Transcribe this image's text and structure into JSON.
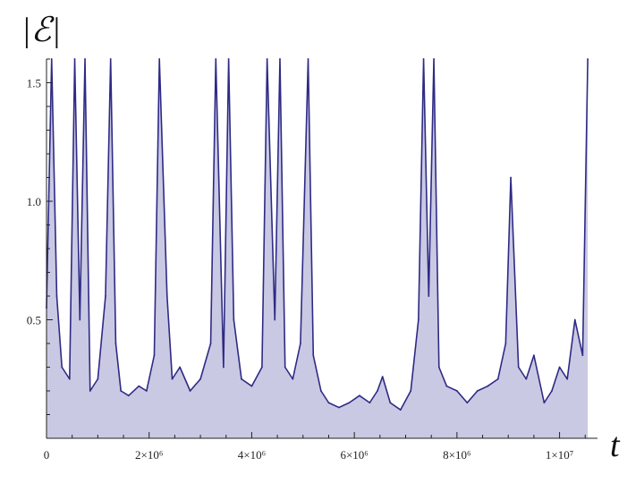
{
  "chart_data": {
    "type": "area",
    "ylabel": "|ℰ|",
    "xlabel": "t",
    "xlim": [
      0,
      10600000
    ],
    "ylim": [
      0,
      1.6
    ],
    "x_ticks": [
      {
        "value": 0,
        "label": "0"
      },
      {
        "value": 2000000,
        "label": "2×10⁶"
      },
      {
        "value": 4000000,
        "label": "4×10⁶"
      },
      {
        "value": 6000000,
        "label": "6×10⁶"
      },
      {
        "value": 8000000,
        "label": "8×10⁶"
      },
      {
        "value": 10000000,
        "label": "1×10⁷"
      }
    ],
    "y_ticks": [
      {
        "value": 0.5,
        "label": "0.5"
      },
      {
        "value": 1.0,
        "label": "1.0"
      },
      {
        "value": 1.5,
        "label": "1.5"
      }
    ],
    "grid": false,
    "colors": {
      "line": "#2e2a85",
      "fill": "#c9c9e3"
    },
    "series": [
      {
        "x": [
          0,
          100000,
          200000,
          300000,
          450000,
          550000,
          650000,
          750000,
          850000,
          1000000,
          1150000,
          1250000,
          1350000,
          1450000,
          1600000,
          1800000,
          1950000,
          2100000,
          2200000,
          2350000,
          2450000,
          2600000,
          2800000,
          3000000,
          3200000,
          3300000,
          3450000,
          3550000,
          3650000,
          3800000,
          4000000,
          4200000,
          4300000,
          4450000,
          4550000,
          4650000,
          4800000,
          4950000,
          5100000,
          5200000,
          5350000,
          5500000,
          5700000,
          5900000,
          6100000,
          6300000,
          6450000,
          6550000,
          6700000,
          6900000,
          7100000,
          7250000,
          7350000,
          7450000,
          7550000,
          7650000,
          7800000,
          8000000,
          8200000,
          8400000,
          8600000,
          8800000,
          8950000,
          9050000,
          9200000,
          9350000,
          9500000,
          9700000,
          9850000,
          10000000,
          10150000,
          10300000,
          10450000,
          10550000
        ],
        "y": [
          0.55,
          1.6,
          0.6,
          0.3,
          0.25,
          1.6,
          0.5,
          1.6,
          0.2,
          0.25,
          0.6,
          1.6,
          0.4,
          0.2,
          0.18,
          0.22,
          0.2,
          0.35,
          1.6,
          0.6,
          0.25,
          0.3,
          0.2,
          0.25,
          0.4,
          1.6,
          0.3,
          1.6,
          0.5,
          0.25,
          0.22,
          0.3,
          1.6,
          0.5,
          1.6,
          0.3,
          0.25,
          0.4,
          1.6,
          0.35,
          0.2,
          0.15,
          0.13,
          0.15,
          0.18,
          0.15,
          0.2,
          0.26,
          0.15,
          0.12,
          0.2,
          0.5,
          1.6,
          0.6,
          1.6,
          0.3,
          0.22,
          0.2,
          0.15,
          0.2,
          0.22,
          0.25,
          0.4,
          1.1,
          0.3,
          0.25,
          0.35,
          0.15,
          0.2,
          0.3,
          0.25,
          0.5,
          0.35,
          1.6
        ]
      }
    ]
  }
}
